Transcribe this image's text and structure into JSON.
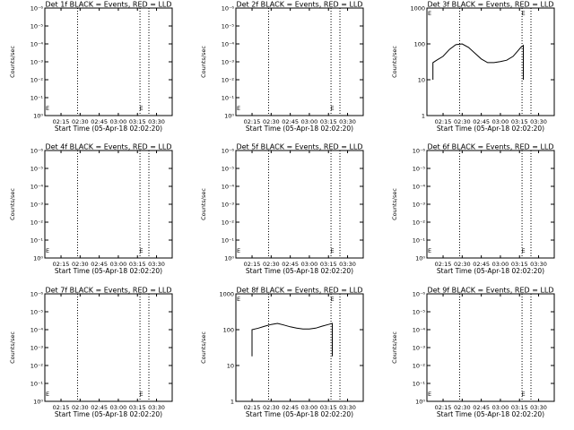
{
  "page": {
    "background": "#ffffff",
    "line_color": "#000000"
  },
  "chart_data": [
    {
      "type": "line",
      "title": "Det 1f BLACK = Events, RED = LLD",
      "xlabel": "Start Time (05-Apr-18 02:02:20)",
      "ylabel": "Counts/sec",
      "x_ticks": [
        "02:15",
        "02:30",
        "02:45",
        "03:00",
        "03:15",
        "03:30"
      ],
      "y_scale": "log",
      "y_ticks": [
        "10⁰",
        "10⁻¹",
        "10⁻²",
        "10⁻³",
        "10⁻⁴",
        "10⁻⁵",
        "10⁻⁶"
      ],
      "marker": "E",
      "series": []
    },
    {
      "type": "line",
      "title": "Det 2f BLACK = Events, RED = LLD",
      "xlabel": "Start Time (05-Apr-18 02:02:20)",
      "ylabel": "Counts/sec",
      "x_ticks": [
        "02:15",
        "02:30",
        "02:45",
        "03:00",
        "03:15",
        "03:30"
      ],
      "y_scale": "log",
      "y_ticks": [
        "10⁰",
        "10⁻¹",
        "10⁻²",
        "10⁻³",
        "10⁻⁴",
        "10⁻⁵",
        "10⁻⁶"
      ],
      "marker": "E",
      "series": []
    },
    {
      "type": "line",
      "title": "Det 3f BLACK = Events, RED = LLD",
      "xlabel": "Start Time (05-Apr-18 02:02:20)",
      "ylabel": "Counts/sec",
      "x_ticks": [
        "02:15",
        "02:30",
        "02:45",
        "03:00",
        "03:15",
        "03:30"
      ],
      "y_scale": "log",
      "y_ticks": [
        "1",
        "10",
        "100",
        "1000"
      ],
      "marker": "E",
      "series": [
        {
          "color": "#000000",
          "x": [
            "02:07",
            "02:07",
            "02:10",
            "02:15",
            "02:20",
            "02:25",
            "02:30",
            "02:35",
            "02:40",
            "02:45",
            "02:50",
            "02:55",
            "03:00",
            "03:05",
            "03:10",
            "03:13",
            "03:16",
            "03:18",
            "03:18"
          ],
          "y": [
            10,
            30,
            35,
            45,
            70,
            95,
            100,
            80,
            55,
            38,
            30,
            30,
            32,
            35,
            45,
            60,
            80,
            90,
            10
          ]
        }
      ]
    },
    {
      "type": "line",
      "title": "Det 4f BLACK = Events, RED = LLD",
      "xlabel": "Start Time (05-Apr-18 02:02:20)",
      "ylabel": "Counts/sec",
      "x_ticks": [
        "02:15",
        "02:30",
        "02:45",
        "03:00",
        "03:15",
        "03:30"
      ],
      "y_scale": "log",
      "y_ticks": [
        "10⁰",
        "10⁻¹",
        "10⁻²",
        "10⁻³",
        "10⁻⁴",
        "10⁻⁵",
        "10⁻⁶"
      ],
      "marker": "E",
      "series": []
    },
    {
      "type": "line",
      "title": "Det 5f BLACK = Events, RED = LLD",
      "xlabel": "Start Time (05-Apr-18 02:02:20)",
      "ylabel": "Counts/sec",
      "x_ticks": [
        "02:15",
        "02:30",
        "02:45",
        "03:00",
        "03:15",
        "03:30"
      ],
      "y_scale": "log",
      "y_ticks": [
        "10⁰",
        "10⁻¹",
        "10⁻²",
        "10⁻³",
        "10⁻⁴",
        "10⁻⁵",
        "10⁻⁶"
      ],
      "marker": "E",
      "series": []
    },
    {
      "type": "line",
      "title": "Det 6f BLACK = Events, RED = LLD",
      "xlabel": "Start Time (05-Apr-18 02:02:20)",
      "ylabel": "Counts/sec",
      "x_ticks": [
        "02:15",
        "02:30",
        "02:45",
        "03:00",
        "03:15",
        "03:30"
      ],
      "y_scale": "log",
      "y_ticks": [
        "10⁰",
        "10⁻¹",
        "10⁻²",
        "10⁻³",
        "10⁻⁴",
        "10⁻⁵",
        "10⁻⁶"
      ],
      "marker": "E",
      "series": []
    },
    {
      "type": "line",
      "title": "Det 7f BLACK = Events, RED = LLD",
      "xlabel": "Start Time (05-Apr-18 02:02:20)",
      "ylabel": "Counts/sec",
      "x_ticks": [
        "02:15",
        "02:30",
        "02:45",
        "03:00",
        "03:15",
        "03:30"
      ],
      "y_scale": "log",
      "y_ticks": [
        "10⁰",
        "10⁻¹",
        "10⁻²",
        "10⁻³",
        "10⁻⁴",
        "10⁻⁵",
        "10⁻⁶"
      ],
      "marker": "E",
      "series": []
    },
    {
      "type": "line",
      "title": "Det 8f BLACK = Events, RED = LLD",
      "xlabel": "Start Time (05-Apr-18 02:02:20)",
      "ylabel": "Counts/sec",
      "x_ticks": [
        "02:15",
        "02:30",
        "02:45",
        "03:00",
        "03:15",
        "03:30"
      ],
      "y_scale": "log",
      "y_ticks": [
        "1",
        "10",
        "100",
        "1000"
      ],
      "marker": "E",
      "series": [
        {
          "color": "#000000",
          "x": [
            "02:15",
            "02:15",
            "02:20",
            "02:25",
            "02:30",
            "02:35",
            "02:40",
            "02:45",
            "02:50",
            "02:55",
            "03:00",
            "03:05",
            "03:10",
            "03:15",
            "03:18",
            "03:18"
          ],
          "y": [
            18,
            100,
            110,
            125,
            140,
            150,
            135,
            120,
            110,
            105,
            105,
            110,
            125,
            140,
            150,
            18
          ]
        }
      ]
    },
    {
      "type": "line",
      "title": "Det 9f BLACK = Events, RED = LLD",
      "xlabel": "Start Time (05-Apr-18 02:02:20)",
      "ylabel": "Counts/sec",
      "x_ticks": [
        "02:15",
        "02:30",
        "02:45",
        "03:00",
        "03:15",
        "03:30"
      ],
      "y_scale": "log",
      "y_ticks": [
        "10⁰",
        "10⁻¹",
        "10⁻²",
        "10⁻³",
        "10⁻⁴",
        "10⁻⁵",
        "10⁻⁶"
      ],
      "marker": "E",
      "series": []
    }
  ]
}
